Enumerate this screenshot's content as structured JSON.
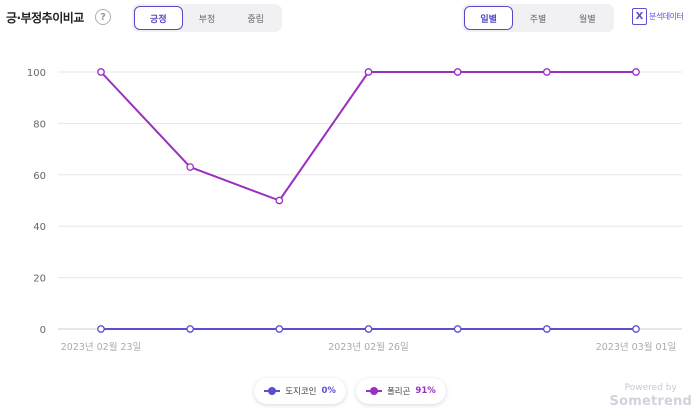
{
  "header": {
    "title": "긍·부정추이비교",
    "help_glyph": "?",
    "sentiment_tabs": [
      {
        "label": "긍정",
        "active": true
      },
      {
        "label": "부정",
        "active": false
      },
      {
        "label": "중립",
        "active": false
      }
    ],
    "period_tabs": [
      {
        "label": "일별",
        "active": true
      },
      {
        "label": "주별",
        "active": false
      },
      {
        "label": "월별",
        "active": false
      }
    ],
    "excel_glyph": "X",
    "excel_label": "분석데이터"
  },
  "chart_data": {
    "type": "line",
    "x": [
      "2023-02-23",
      "2023-02-24",
      "2023-02-25",
      "2023-02-26",
      "2023-02-27",
      "2023-02-28",
      "2023-03-01"
    ],
    "x_tick_labels": [
      "2023년 02월 23일",
      "2023년 02월 26일",
      "2023년 03월 01일"
    ],
    "x_tick_indices": [
      0,
      3,
      6
    ],
    "ylim": [
      0,
      100
    ],
    "y_ticks": [
      0,
      20,
      40,
      60,
      80,
      100
    ],
    "grid": true,
    "legend_position": "bottom-center",
    "series": [
      {
        "name": "도지코인",
        "percent": "0%",
        "color": "#5b4fd1",
        "values": [
          0,
          0,
          0,
          0,
          0,
          0,
          0
        ]
      },
      {
        "name": "폴리곤",
        "percent": "91%",
        "color": "#9b2fc0",
        "values": [
          100,
          63,
          50,
          100,
          100,
          100,
          100
        ]
      }
    ]
  },
  "watermark": {
    "line1": "Powered by",
    "line2": "Sometrend"
  }
}
